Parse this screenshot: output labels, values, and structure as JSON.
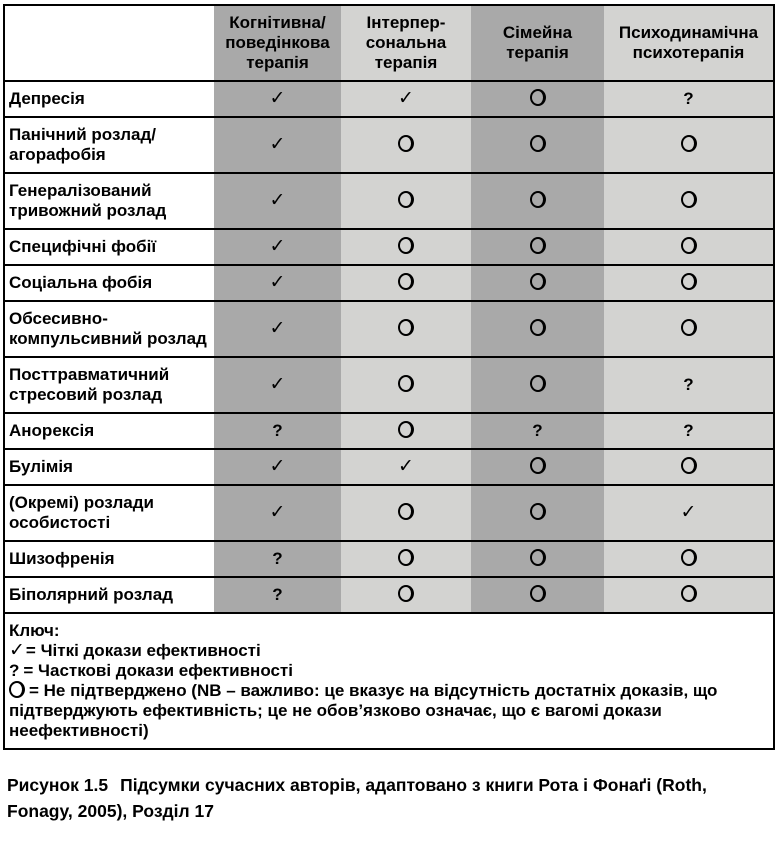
{
  "colors": {
    "column_dark": "#a9a9a9",
    "column_light": "#d3d3d1",
    "border": "#000000",
    "page_background": "#ffffff",
    "text": "#000000"
  },
  "symbols": {
    "check": "✓",
    "question": "?"
  },
  "table": {
    "columns": [
      "Когнітивна/поведінкова терапія",
      "Інтерпер-сональна терапія",
      "Сімейна терапія",
      "Психодинамічна психотерапія"
    ],
    "rows": [
      {
        "label": "Депресія",
        "cells": [
          "check",
          "check",
          "circle",
          "question"
        ]
      },
      {
        "label": "Панічний розлад/агорафобія",
        "cells": [
          "check",
          "circle",
          "circle",
          "circle"
        ]
      },
      {
        "label": "Генералізований тривожний розлад",
        "cells": [
          "check",
          "circle",
          "circle",
          "circle"
        ]
      },
      {
        "label": "Специфічні фобії",
        "cells": [
          "check",
          "circle",
          "circle",
          "circle"
        ]
      },
      {
        "label": "Соціальна фобія",
        "cells": [
          "check",
          "circle",
          "circle",
          "circle"
        ]
      },
      {
        "label": "Обсесивно-компульсивний розлад",
        "cells": [
          "check",
          "circle",
          "circle",
          "circle"
        ]
      },
      {
        "label": "Посттравматичний стресовий розлад",
        "cells": [
          "check",
          "circle",
          "circle",
          "question"
        ]
      },
      {
        "label": "Анорексія",
        "cells": [
          "question",
          "circle",
          "question",
          "question"
        ]
      },
      {
        "label": "Булімія",
        "cells": [
          "check",
          "check",
          "circle",
          "circle"
        ]
      },
      {
        "label": "(Окремі) розлади особистості",
        "cells": [
          "check",
          "circle",
          "circle",
          "check"
        ]
      },
      {
        "label": "Шизофренія",
        "cells": [
          "question",
          "circle",
          "circle",
          "circle"
        ]
      },
      {
        "label": "Біполярний розлад",
        "cells": [
          "question",
          "circle",
          "circle",
          "circle"
        ]
      }
    ]
  },
  "key": {
    "title": "Ключ:",
    "items": [
      {
        "symbol": "check",
        "text": "= Чіткі докази ефективності"
      },
      {
        "symbol": "question",
        "text": "= Часткові докази ефективності"
      },
      {
        "symbol": "circle",
        "text": "= Не підтверджено (NB – важливо: це вказує на відсутність достатніх доказів, що підтверджують ефективність; це не обов’язково означає, що є вагомі докази неефективності)"
      }
    ]
  },
  "caption": {
    "label": "Рисунок 1.5",
    "text": "Підсумки сучасних авторів, адаптовано з книги Рота і Фонаґі (Roth, Fonagy, 2005), Розділ 17"
  }
}
